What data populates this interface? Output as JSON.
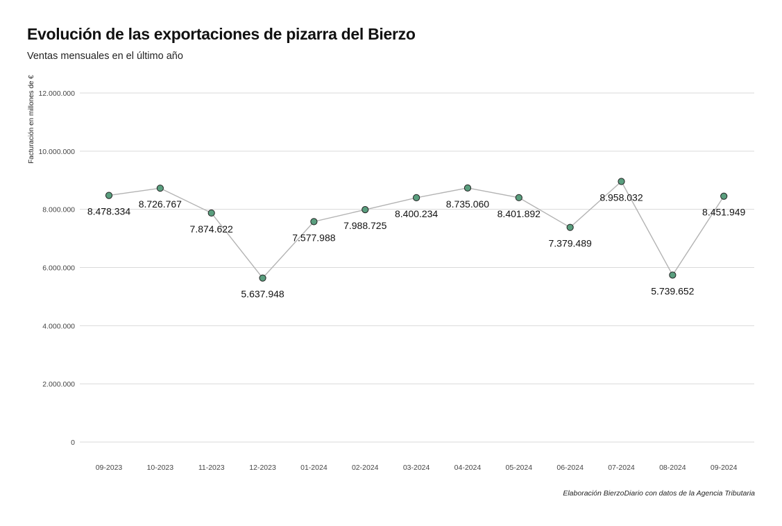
{
  "header": {
    "title": "Evolución de las exportaciones de pizarra del Bierzo",
    "subtitle": "Ventas mensuales en el último año"
  },
  "caption": "Elaboración BierzoDiario con datos de la Agencia Tributaria",
  "colors": {
    "line": "#b3b3b3",
    "point_fill": "#5a9e7e",
    "point_stroke": "#222222",
    "grid": "#d9d9d9"
  },
  "chart_data": {
    "type": "line",
    "title": "Evolución de las exportaciones de pizarra del Bierzo",
    "subtitle": "Ventas mensuales en el último año",
    "xlabel": "",
    "ylabel": "Facturación en millones de €",
    "categories": [
      "09-2023",
      "10-2023",
      "11-2023",
      "12-2023",
      "01-2024",
      "02-2024",
      "03-2024",
      "04-2024",
      "05-2024",
      "06-2024",
      "07-2024",
      "08-2024",
      "09-2024"
    ],
    "values": [
      8478334,
      8726767,
      7874622,
      5637948,
      7577988,
      7988725,
      8400234,
      8735060,
      8401892,
      7379489,
      8958032,
      5739652,
      8451949
    ],
    "data_labels": [
      "8.478.334",
      "8.726.767",
      "7.874.622",
      "5.637.948",
      "7.577.988",
      "7.988.725",
      "8.400.234",
      "8.735.060",
      "8.401.892",
      "7.379.489",
      "8.958.032",
      "5.739.652",
      "8.451.949"
    ],
    "yticks": [
      0,
      2000000,
      4000000,
      6000000,
      8000000,
      10000000,
      12000000
    ],
    "ytick_labels": [
      "0",
      "2.000.000",
      "4.000.000",
      "6.000.000",
      "8.000.000",
      "10.000.000",
      "12.000.000"
    ],
    "ylim": [
      0,
      12000000
    ],
    "grid": true,
    "legend": false
  }
}
